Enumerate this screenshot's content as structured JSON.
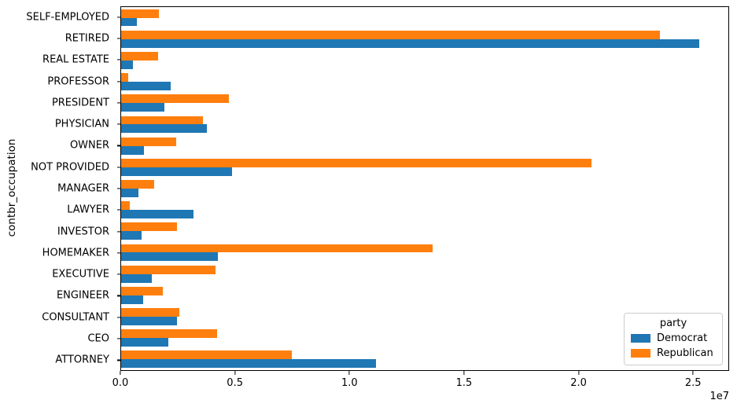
{
  "figure": {
    "background": "#ffffff"
  },
  "chart_data": {
    "type": "bar",
    "orientation": "horizontal",
    "title": "",
    "xlabel": "",
    "ylabel": "contbr_occupation",
    "grid": false,
    "xlim": [
      0,
      26570372
    ],
    "x_tick_values": [
      0,
      5000000,
      10000000,
      15000000,
      20000000,
      25000000
    ],
    "x_tick_labels": [
      "0.0",
      "0.5",
      "1.0",
      "1.5",
      "2.0",
      "2.5"
    ],
    "x_offset_label": "1e7",
    "categories_top_to_bottom": [
      "SELF-EMPLOYED",
      "RETIRED",
      "REAL ESTATE",
      "PROFESSOR",
      "PRESIDENT",
      "PHYSICIAN",
      "OWNER",
      "NOT PROVIDED",
      "MANAGER",
      "LAWYER",
      "INVESTOR",
      "HOMEMAKER",
      "EXECUTIVE",
      "ENGINEER",
      "CONSULTANT",
      "CEO",
      "ATTORNEY"
    ],
    "bar_order_within_group_top_to_bottom": [
      "Republican",
      "Democrat"
    ],
    "series": [
      {
        "name": "Democrat",
        "color": "#1f77b4",
        "values": [
          672393,
          25305116,
          528902,
          2165071,
          1878510,
          3735125,
          1001567,
          4866974,
          762883,
          3160479,
          884133,
          4248876,
          1355161,
          951526,
          2459913,
          2074975,
          11141983
        ]
      },
      {
        "name": "Republican",
        "color": "#ff7f0e",
        "values": [
          1640253,
          23561244,
          1625902,
          296703,
          4720924,
          3594320,
          2408287,
          20565473,
          1444532,
          391224,
          2431769,
          13634276,
          4138850,
          1818374,
          2544725,
          4211041,
          7477194
        ]
      }
    ],
    "legend": {
      "title": "party",
      "position": "lower right"
    }
  }
}
